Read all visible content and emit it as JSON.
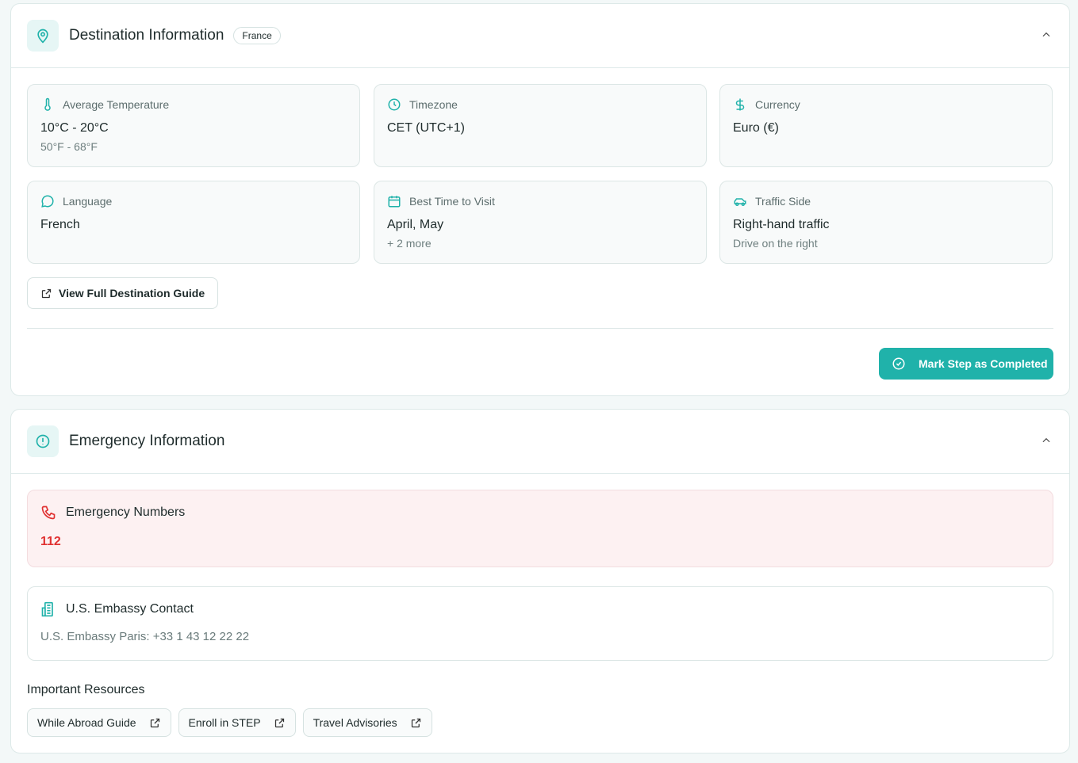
{
  "destination": {
    "title": "Destination Information",
    "badge": "France",
    "tiles": [
      {
        "icon": "thermometer-icon",
        "label": "Average Temperature",
        "value": "10°C - 20°C",
        "sub": "50°F - 68°F"
      },
      {
        "icon": "clock-icon",
        "label": "Timezone",
        "value": "CET (UTC+1)",
        "sub": ""
      },
      {
        "icon": "dollar-icon",
        "label": "Currency",
        "value": "Euro (€)",
        "sub": ""
      },
      {
        "icon": "chat-bubble-icon",
        "label": "Language",
        "value": "French",
        "sub": ""
      },
      {
        "icon": "calendar-icon",
        "label": "Best Time to Visit",
        "value": "April, May",
        "sub": "+ 2 more"
      },
      {
        "icon": "car-icon",
        "label": "Traffic Side",
        "value": "Right-hand traffic",
        "sub": "Drive on the right"
      }
    ],
    "guide_button": "View Full Destination Guide",
    "complete_button": "Mark Step as Completed"
  },
  "emergency": {
    "title": "Emergency Information",
    "numbers_label": "Emergency Numbers",
    "number": "112",
    "embassy_label": "U.S. Embassy Contact",
    "embassy_value": "U.S. Embassy Paris: +33 1 43 12 22 22",
    "resources_label": "Important Resources",
    "resources": [
      "While Abroad Guide",
      "Enroll in STEP",
      "Travel Advisories"
    ]
  },
  "colors": {
    "accent": "#20b2aa",
    "danger": "#e03131",
    "danger_bg": "#fdf1f2"
  }
}
